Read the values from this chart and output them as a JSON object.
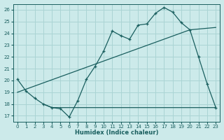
{
  "xlabel": "Humidex (Indice chaleur)",
  "ylabel": "",
  "bg_color": "#cceaea",
  "grid_color": "#aad4d4",
  "line_color": "#1a5f5f",
  "xlim": [
    -0.5,
    23.5
  ],
  "ylim": [
    16.5,
    26.5
  ],
  "yticks": [
    17,
    18,
    19,
    20,
    21,
    22,
    23,
    24,
    25,
    26
  ],
  "xticks": [
    0,
    1,
    2,
    3,
    4,
    5,
    6,
    7,
    8,
    9,
    10,
    11,
    12,
    13,
    14,
    15,
    16,
    17,
    18,
    19,
    20,
    21,
    22,
    23
  ],
  "line1_x": [
    0,
    1,
    2,
    3,
    4,
    5,
    6,
    7,
    8,
    9,
    10,
    11,
    12,
    13,
    14,
    15,
    16,
    17,
    18,
    19,
    20,
    21,
    22,
    23
  ],
  "line1_y": [
    20.1,
    19.1,
    18.5,
    18.0,
    17.7,
    17.6,
    16.9,
    18.3,
    20.1,
    21.2,
    22.5,
    24.2,
    23.8,
    23.5,
    24.7,
    24.8,
    25.7,
    26.2,
    25.8,
    24.9,
    24.3,
    22.0,
    19.7,
    17.7
  ],
  "line2_x": [
    0,
    20,
    23
  ],
  "line2_y": [
    19.0,
    24.3,
    24.5
  ],
  "line3_x": [
    3,
    4,
    5,
    19,
    23
  ],
  "line3_y": [
    18.0,
    17.7,
    17.7,
    17.7,
    17.7
  ]
}
